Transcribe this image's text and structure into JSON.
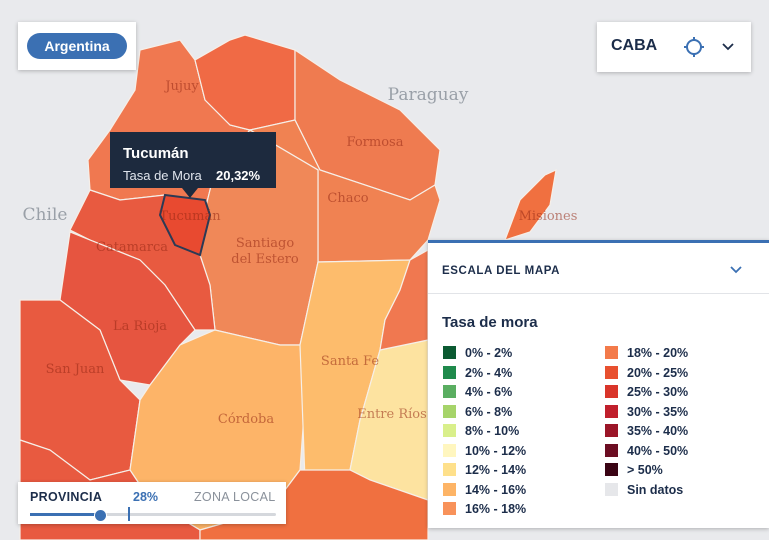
{
  "header": {
    "country_button": "Argentina",
    "location_select": "CABA"
  },
  "map": {
    "country_labels": [
      "Paraguay",
      "Chile"
    ],
    "province_labels": [
      "Jujuy",
      "Formosa",
      "Chaco",
      "Misiones",
      "Tucumán",
      "Santiago",
      "del Estero",
      "Catamarca",
      "La Rioja",
      "San Juan",
      "Córdoba",
      "Santa Fe",
      "Entre Ríos"
    ]
  },
  "tooltip": {
    "title": "Tucumán",
    "label": "Tasa de Mora",
    "value": "20,32%"
  },
  "legend": {
    "header": "ESCALA DEL MAPA",
    "title": "Tasa de mora",
    "items": [
      {
        "label": "0% - 2%",
        "color": "#0b5a32"
      },
      {
        "label": "2% - 4%",
        "color": "#1f8a4c"
      },
      {
        "label": "4% - 6%",
        "color": "#5aae61"
      },
      {
        "label": "6% - 8%",
        "color": "#a6d46a"
      },
      {
        "label": "8% - 10%",
        "color": "#d9ef8b"
      },
      {
        "label": "10% - 12%",
        "color": "#fff6bf"
      },
      {
        "label": "12% - 14%",
        "color": "#fee08b"
      },
      {
        "label": "14% - 16%",
        "color": "#fdb466"
      },
      {
        "label": "16% - 18%",
        "color": "#f8925a"
      },
      {
        "label": "18% - 20%",
        "color": "#f37a4a"
      },
      {
        "label": "20% - 25%",
        "color": "#e8502f"
      },
      {
        "label": "25% - 30%",
        "color": "#d9352a"
      },
      {
        "label": "30% - 35%",
        "color": "#c01f2c"
      },
      {
        "label": "35% - 40%",
        "color": "#9b1528"
      },
      {
        "label": "40% - 50%",
        "color": "#6c0d22"
      },
      {
        "label": "> 50%",
        "color": "#3a0414"
      },
      {
        "label": "Sin datos",
        "color": "#e6e7ea"
      }
    ]
  },
  "slider": {
    "left_label": "PROVINCIA",
    "value": "28%",
    "right_label": "ZONA LOCAL"
  }
}
